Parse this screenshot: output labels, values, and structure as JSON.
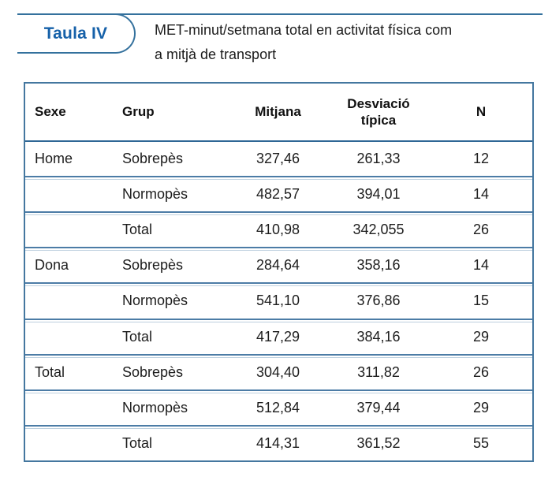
{
  "header": {
    "tag_label": "Taula IV",
    "title_lines": [
      "MET-minut/setmana total en activitat física com",
      "a mitjà de transport"
    ]
  },
  "colors": {
    "rule_blue": "#34719d",
    "tag_text_blue": "#1661a9",
    "table_border_blue": "#44779f",
    "row_separator_dark": "#4c7ca6",
    "row_separator_light": "#bdd0df",
    "text": "#1d1d1d"
  },
  "chart_data": {
    "type": "table",
    "title": "MET-minut/setmana total en activitat física com a mitjà de transport",
    "columns": [
      "Sexe",
      "Grup",
      "Mitjana",
      "Desviació típica",
      "N"
    ],
    "rows": [
      [
        "Home",
        "Sobrepès",
        "327,46",
        "261,33",
        "12"
      ],
      [
        "",
        "Normopès",
        "482,57",
        "394,01",
        "14"
      ],
      [
        "",
        "Total",
        "410,98",
        "342,055",
        "26"
      ],
      [
        "Dona",
        "Sobrepès",
        "284,64",
        "358,16",
        "14"
      ],
      [
        "",
        "Normopès",
        "541,10",
        "376,86",
        "15"
      ],
      [
        "",
        "Total",
        "417,29",
        "384,16",
        "29"
      ],
      [
        "Total",
        "Sobrepès",
        "304,40",
        "311,82",
        "26"
      ],
      [
        "",
        "Normopès",
        "512,84",
        "379,44",
        "29"
      ],
      [
        "",
        "Total",
        "414,31",
        "361,52",
        "55"
      ]
    ]
  }
}
